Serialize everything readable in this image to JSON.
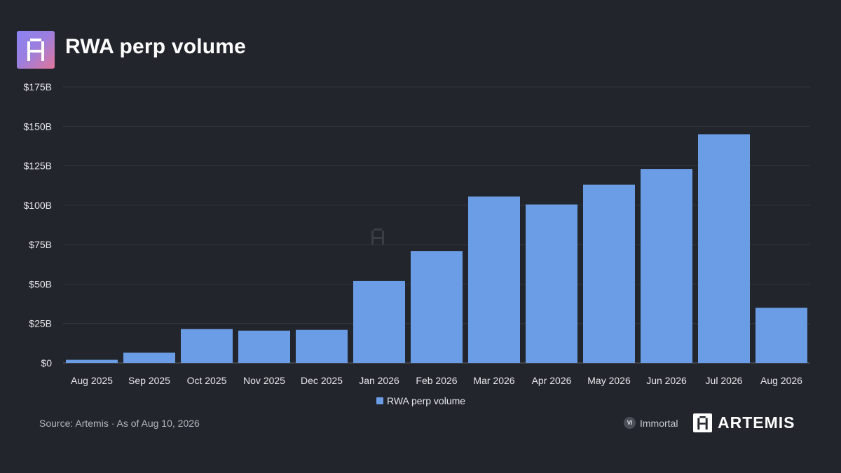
{
  "header": {
    "title": "RWA perp volume",
    "logo_icon": "artemis-pixel-a-icon"
  },
  "footer": {
    "source": "Source: Artemis · As of Aug 10, 2026",
    "immortal_badge": "VI",
    "immortal_label": "Immortal",
    "brand": "ARTEMIS"
  },
  "colors": {
    "background": "#22252b",
    "bar": "#6b9de6",
    "grid": "#33373e",
    "text": "#e6e8ec"
  },
  "chart_data": {
    "type": "bar",
    "title": "RWA perp volume",
    "categories": [
      "Aug 2025",
      "Sep 2025",
      "Oct 2025",
      "Nov 2025",
      "Dec 2025",
      "Jan 2026",
      "Feb 2026",
      "Mar 2026",
      "Apr 2026",
      "May 2026",
      "Jun 2026",
      "Jul 2026",
      "Aug 2026"
    ],
    "series": [
      {
        "name": "RWA perp volume",
        "values": [
          2,
          6.5,
          21.5,
          20.5,
          21,
          52,
          71,
          105.5,
          100.5,
          113,
          123,
          145,
          35
        ]
      }
    ],
    "unit": "billions USD",
    "yticks": [
      0,
      25,
      50,
      75,
      100,
      125,
      150,
      175
    ],
    "ytick_labels": [
      "$0",
      "$25B",
      "$50B",
      "$75B",
      "$100B",
      "$125B",
      "$150B",
      "$175B"
    ],
    "ylim": [
      0,
      175
    ],
    "grid": true,
    "legend": "bottom-center",
    "xlabel": "",
    "ylabel": ""
  }
}
